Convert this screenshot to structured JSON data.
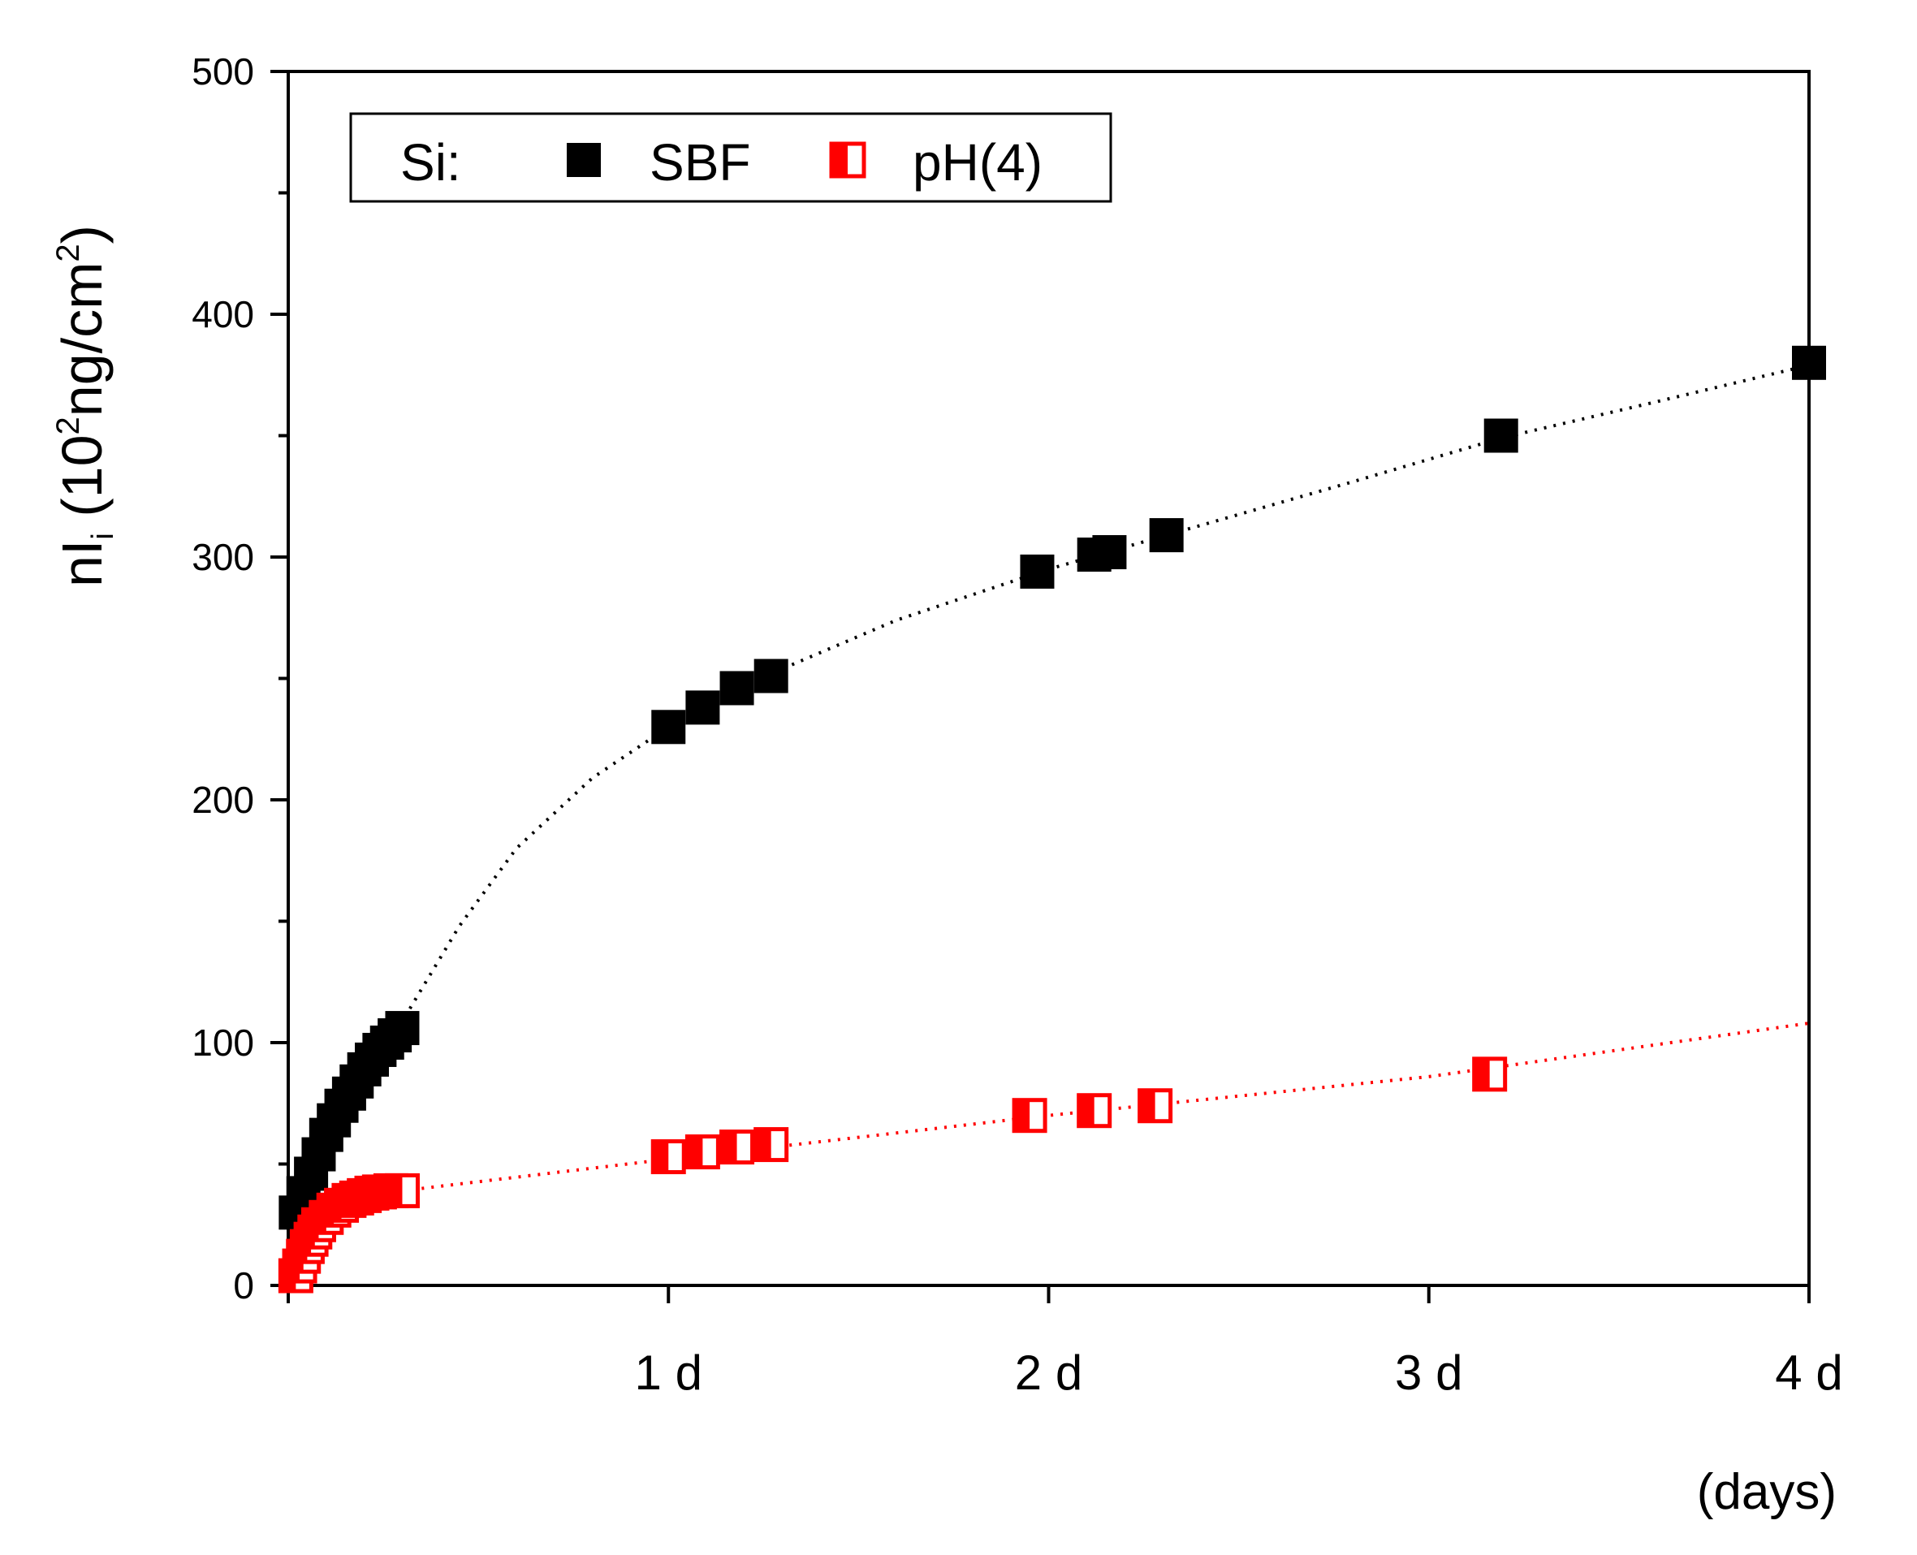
{
  "chart_data": {
    "type": "scatter",
    "title": "",
    "ylabel": "nI_i (10^2 ng/cm^2)",
    "ylabel_parts": {
      "main": "nI",
      "sub": "i",
      "open": " (10",
      "sup1": "2",
      "mid": "ng/cm",
      "sup2": "2",
      "close": ")"
    },
    "xlabel": "(days)",
    "xlim": [
      0,
      4
    ],
    "ylim": [
      0,
      500
    ],
    "y_ticks": [
      0,
      100,
      200,
      300,
      400,
      500
    ],
    "y_tick_labels": [
      "0",
      "100",
      "200",
      "300",
      "400",
      "500"
    ],
    "x_ticks": [
      1,
      2,
      3,
      4
    ],
    "x_tick_labels": [
      "1 d",
      "2 d",
      "3 d",
      "4 d"
    ],
    "legend": {
      "prefix": "Si:",
      "placement": "top-left"
    },
    "series": [
      {
        "name": "SBF",
        "color": "#000000",
        "marker": "filled-square",
        "points": [
          [
            0.02,
            30
          ],
          [
            0.04,
            38
          ],
          [
            0.06,
            46
          ],
          [
            0.08,
            54
          ],
          [
            0.1,
            62
          ],
          [
            0.12,
            68
          ],
          [
            0.14,
            74
          ],
          [
            0.16,
            79
          ],
          [
            0.18,
            84
          ],
          [
            0.2,
            89
          ],
          [
            0.22,
            93
          ],
          [
            0.24,
            97
          ],
          [
            0.26,
            100
          ],
          [
            0.28,
            103
          ],
          [
            0.3,
            106
          ],
          [
            1.0,
            230
          ],
          [
            1.09,
            238
          ],
          [
            1.18,
            246
          ],
          [
            1.27,
            251
          ],
          [
            1.97,
            294
          ],
          [
            2.12,
            301
          ],
          [
            2.16,
            302
          ],
          [
            2.31,
            309
          ],
          [
            3.19,
            350
          ],
          [
            4.0,
            380
          ]
        ],
        "trend": [
          [
            0.32,
            114
          ],
          [
            0.45,
            148
          ],
          [
            0.6,
            180
          ],
          [
            0.8,
            209
          ],
          [
            1.0,
            230
          ],
          [
            1.27,
            252
          ],
          [
            1.6,
            274
          ],
          [
            2.0,
            295
          ],
          [
            2.31,
            309
          ],
          [
            2.8,
            331
          ],
          [
            3.19,
            349
          ],
          [
            3.6,
            364
          ],
          [
            4.0,
            379
          ]
        ]
      },
      {
        "name": "pH(4)",
        "color": "#ff0000",
        "marker": "half-filled-square",
        "points": [
          [
            0.02,
            4
          ],
          [
            0.03,
            8
          ],
          [
            0.04,
            12
          ],
          [
            0.05,
            16
          ],
          [
            0.06,
            19
          ],
          [
            0.07,
            22
          ],
          [
            0.08,
            25
          ],
          [
            0.1,
            28
          ],
          [
            0.12,
            31
          ],
          [
            0.14,
            33
          ],
          [
            0.16,
            35
          ],
          [
            0.18,
            36
          ],
          [
            0.2,
            37
          ],
          [
            0.22,
            38
          ],
          [
            0.24,
            38.5
          ],
          [
            0.27,
            39
          ],
          [
            0.3,
            39
          ],
          [
            1.0,
            53
          ],
          [
            1.09,
            55
          ],
          [
            1.18,
            57
          ],
          [
            1.27,
            58
          ],
          [
            1.95,
            70
          ],
          [
            2.12,
            72
          ],
          [
            2.28,
            74
          ],
          [
            3.16,
            87
          ]
        ],
        "trend": [
          [
            0.3,
            39
          ],
          [
            1.0,
            52
          ],
          [
            2.0,
            70
          ],
          [
            3.0,
            86
          ],
          [
            4.0,
            108
          ]
        ]
      }
    ]
  }
}
